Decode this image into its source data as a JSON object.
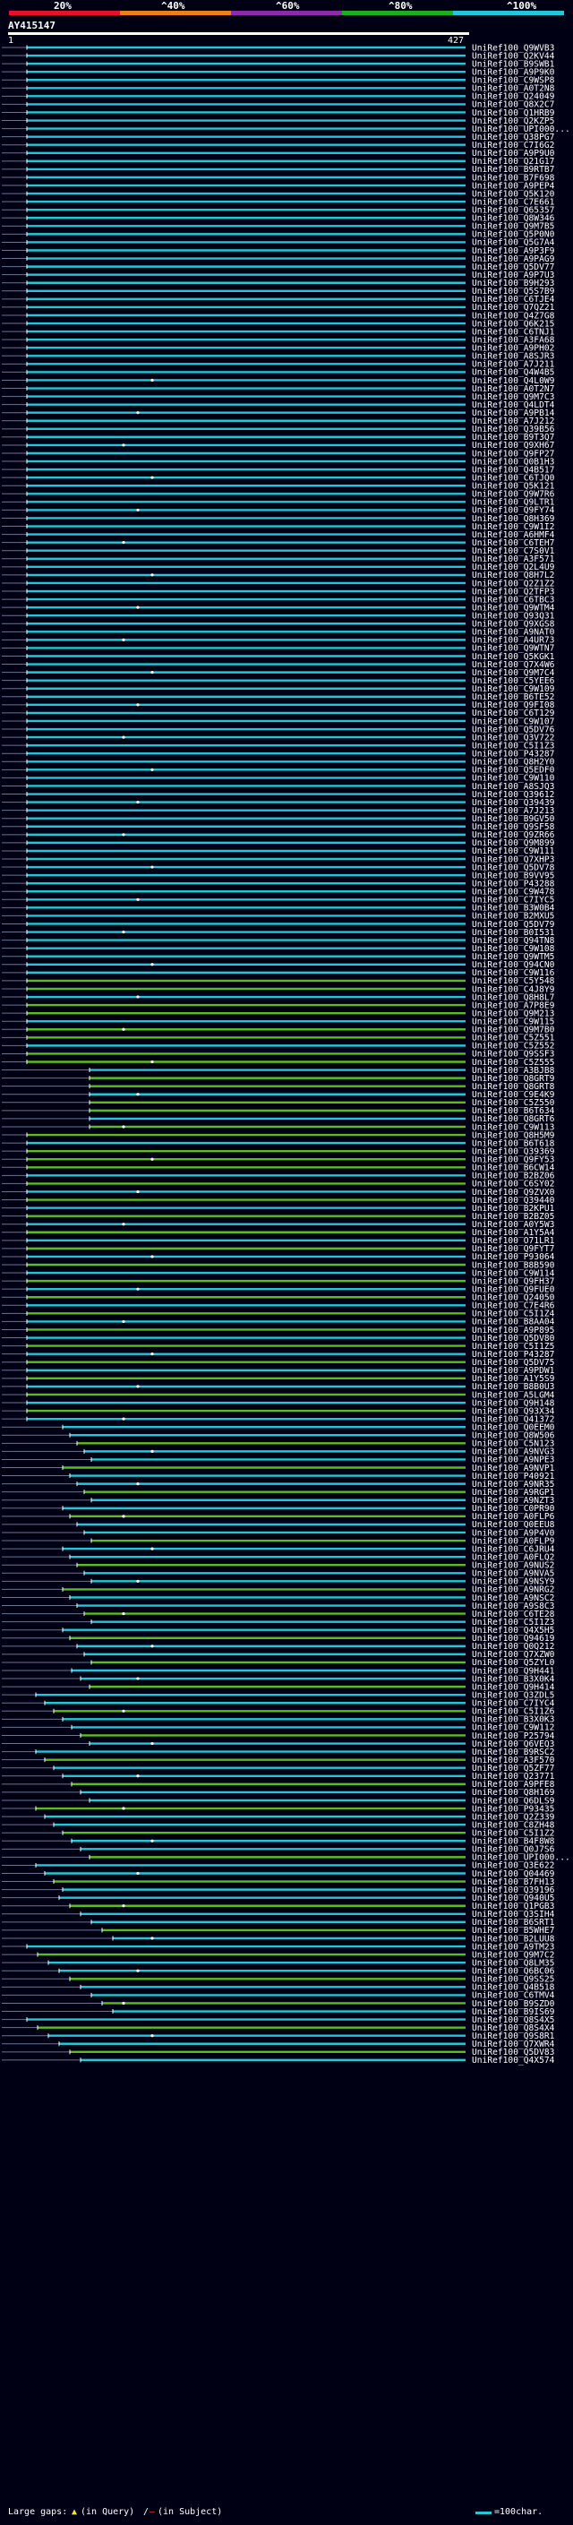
{
  "header": {
    "scale_labels": [
      "20%",
      "^40%",
      "^60%",
      "^80%",
      "^100%"
    ],
    "scale_colors": [
      "#e8102a",
      "#ef7f1a",
      "#8a2ca8",
      "#1cae1c",
      "#22c8d8"
    ],
    "query_name": "AY415147",
    "range_start": "1",
    "range_end": "427"
  },
  "colors": {
    "background": "#000014",
    "cyan": "#22c8d8",
    "green": "#5cbe1e",
    "dark_green": "#1d7a1d",
    "gap": "#6a7490"
  },
  "hits": [
    "UniRef100_Q9WVB3",
    "UniRef100_Q2KV44",
    "UniRef100_B9SWB1",
    "UniRef100_A9P9K0",
    "UniRef100_C9WSP8",
    "UniRef100_A0T2N8",
    "UniRef100_Q24049",
    "UniRef100_Q8X2C7",
    "UniRef100_Q1HRB9",
    "UniRef100_Q2KZP5",
    "UniRef100_UPI000...",
    "UniRef100_Q38PG7",
    "UniRef100_C7I6G2",
    "UniRef100_A9P9U0",
    "UniRef100_Q21G17",
    "UniRef100_B9RTB7",
    "UniRef100_B7F698",
    "UniRef100_A9PEP4",
    "UniRef100_Q5K120",
    "UniRef100_C7E661",
    "UniRef100_Q65357",
    "UniRef100_Q8W346",
    "UniRef100_Q9M7B5",
    "UniRef100_Q5P0N0",
    "UniRef100_Q5G7A4",
    "UniRef100_A9P3F9",
    "UniRef100_A9PAG9",
    "UniRef100_Q5DV77",
    "UniRef100_A9P7U3",
    "UniRef100_B9H293",
    "UniRef100_Q5S7B9",
    "UniRef100_C6TJE4",
    "UniRef100_Q7QZ21",
    "UniRef100_Q4Z7G8",
    "UniRef100_Q6K215",
    "UniRef100_C6TNJ1",
    "UniRef100_A3FA68",
    "UniRef100_A9PH02",
    "UniRef100_A8SJR3",
    "UniRef100_A7J211",
    "UniRef100_Q4W4B5",
    "UniRef100_Q4L0W9",
    "UniRef100_A0T2N7",
    "UniRef100_Q9M7C3",
    "UniRef100_Q4LDT4",
    "UniRef100_A9PB14",
    "UniRef100_A7J212",
    "UniRef100_Q39B56",
    "UniRef100_B9T3Q7",
    "UniRef100_Q9XH67",
    "UniRef100_Q9FP27",
    "UniRef100_Q0B1H3",
    "UniRef100_Q4B517",
    "UniRef100_C6TJQ0",
    "UniRef100_Q5K121",
    "UniRef100_Q9W7R6",
    "UniRef100_Q9LTR1",
    "UniRef100_Q9FY74",
    "UniRef100_Q8H369",
    "UniRef100_C9W1I2",
    "UniRef100_A6HMF4",
    "UniRef100_C6TEH7",
    "UniRef100_C7S0V1",
    "UniRef100_A3F571",
    "UniRef100_Q2L4U9",
    "UniRef100_Q8H7L2",
    "UniRef100_Q2Z1Z2",
    "UniRef100_Q2TFP3",
    "UniRef100_C6TBC3",
    "UniRef100_Q9WTM4",
    "UniRef100_Q93Q31",
    "UniRef100_Q9XGS8",
    "UniRef100_A9NAT0",
    "UniRef100_A4UR73",
    "UniRef100_Q9WTN7",
    "UniRef100_Q5KGK1",
    "UniRef100_Q7X4W6",
    "UniRef100_Q9M7C4",
    "UniRef100_C5YEE6",
    "UniRef100_C9W109",
    "UniRef100_B6TE52",
    "UniRef100_Q9FI08",
    "UniRef100_C6T129",
    "UniRef100_C9W107",
    "UniRef100_Q5DV76",
    "UniRef100_Q3V722",
    "UniRef100_C5I1Z3",
    "UniRef100_P43287",
    "UniRef100_Q8H2Y0",
    "UniRef100_Q5EDF0",
    "UniRef100_C9W110",
    "UniRef100_A8SJQ3",
    "UniRef100_Q39612",
    "UniRef100_Q39439",
    "UniRef100_A7J213",
    "UniRef100_B9GV50",
    "UniRef100_Q9SF58",
    "UniRef100_Q9ZR66",
    "UniRef100_Q9M899",
    "UniRef100_C9W111",
    "UniRef100_Q7XHP3",
    "UniRef100_Q5DV78",
    "UniRef100_B9VV95",
    "UniRef100_P43288",
    "UniRef100_C9W478",
    "UniRef100_C7IYC5",
    "UniRef100_B3W0B4",
    "UniRef100_B2MXU5",
    "UniRef100_Q5DV79",
    "UniRef100_B0I531",
    "UniRef100_Q94TN8",
    "UniRef100_C9W108",
    "UniRef100_Q9WTM5",
    "UniRef100_Q94CN0",
    "UniRef100_C9W116",
    "UniRef100_C5Y548",
    "UniRef100_C4J8Y9",
    "UniRef100_Q8H8L7",
    "UniRef100_A7P8E9",
    "UniRef100_Q9M213",
    "UniRef100_C9W115",
    "UniRef100_Q9M7B0",
    "UniRef100_C5Z551",
    "UniRef100_C5Z552",
    "UniRef100_Q9SSF3",
    "UniRef100_C5Z555",
    "UniRef100_A3BJB8",
    "UniRef100_Q8GRT9",
    "UniRef100_Q8GRT8",
    "UniRef100_C9E4K9",
    "UniRef100_C5Z550",
    "UniRef100_B6T634",
    "UniRef100_Q8GRT6",
    "UniRef100_C9W113",
    "UniRef100_Q8H5M9",
    "UniRef100_B6T618",
    "UniRef100_Q39369",
    "UniRef100_Q9FY53",
    "UniRef100_B6CW14",
    "UniRef100_B2BZ06",
    "UniRef100_C6SY02",
    "UniRef100_Q9ZVX0",
    "UniRef100_Q39440",
    "UniRef100_B2KPU1",
    "UniRef100_B2BZ05",
    "UniRef100_A0Y5W3",
    "UniRef100_A1Y5A4",
    "UniRef100_O71LR1",
    "UniRef100_Q9FYT7",
    "UniRef100_P93064",
    "UniRef100_B8B590",
    "UniRef100_C9W114",
    "UniRef100_Q9FH37",
    "UniRef100_Q9FUE0",
    "UniRef100_Q24050",
    "UniRef100_C7E4R6",
    "UniRef100_C5I1Z4",
    "UniRef100_B8AA04",
    "UniRef100_A9P895",
    "UniRef100_Q5DV80",
    "UniRef100_C5I1Z5",
    "UniRef100_P43287",
    "UniRef100_Q5DV75",
    "UniRef100_A9PDW1",
    "UniRef100_A1Y5S9",
    "UniRef100_B8B0U3",
    "UniRef100_A5LGM4",
    "UniRef100_Q9H148",
    "UniRef100_Q93X34",
    "UniRef100_Q41372",
    "UniRef100_Q0EEM0",
    "UniRef100_Q8W506",
    "UniRef100_C5N123",
    "UniRef100_A9NVG3",
    "UniRef100_A9NPE3",
    "UniRef100_A9NVP1",
    "UniRef100_P40921",
    "UniRef100_A9NR35",
    "UniRef100_A9RGP1",
    "UniRef100_A9NZT3",
    "UniRef100_C0PR90",
    "UniRef100_A0FLP6",
    "UniRef100_Q0EEU8",
    "UniRef100_A9P4V0",
    "UniRef100_A0FLP9",
    "UniRef100_C6JRU4",
    "UniRef100_A0FLQ2",
    "UniRef100_A9NUS2",
    "UniRef100_A9NVA5",
    "UniRef100_A9NSY9",
    "UniRef100_A9NRG2",
    "UniRef100_A9NSC2",
    "UniRef100_A9S8C3",
    "UniRef100_C6TE28",
    "UniRef100_C5I1Z3",
    "UniRef100_Q4X5H5",
    "UniRef100_Q94619",
    "UniRef100_Q0Q212",
    "UniRef100_Q7XZW0",
    "UniRef100_Q5ZYL0",
    "UniRef100_Q9H441",
    "UniRef100_B3X0K4",
    "UniRef100_Q9H414",
    "UniRef100_Q3ZDL5",
    "UniRef100_C7IYC4",
    "UniRef100_C5I1Z6",
    "UniRef100_B3X0K3",
    "UniRef100_C9W112",
    "UniRef100_P25794",
    "UniRef100_Q6VEQ3",
    "UniRef100_B9RSC2",
    "UniRef100_A3F570",
    "UniRef100_Q5ZF77",
    "UniRef100_Q23771",
    "UniRef100_A9PFE8",
    "UniRef100_Q8H169",
    "UniRef100_Q6DLS9",
    "UniRef100_P93435",
    "UniRef100_Q2Z339",
    "UniRef100_C8ZH48",
    "UniRef100_C5I1Z2",
    "UniRef100_B4F8W8",
    "UniRef100_Q0J7S6",
    "UniRef100_UPI000...",
    "UniRef100_Q3E622",
    "UniRef100_Q04469",
    "UniRef100_B7FH13",
    "UniRef100_Q39196",
    "UniRef100_Q940U5",
    "UniRef100_Q1PGB3",
    "UniRef100_Q3SIH4",
    "UniRef100_B6SRT1",
    "UniRef100_B5WHE7",
    "UniRef100_B2LUU8",
    "UniRef100_A9TM23",
    "UniRef100_Q9M7C2",
    "UniRef100_Q8LM35",
    "UniRef100_Q6BC06",
    "UniRef100_Q9SS25",
    "UniRef100_Q4B518",
    "UniRef100_C6TMV4",
    "UniRef100_B9SZD0",
    "UniRef100_B9IS69",
    "UniRef100_Q8S4X5",
    "UniRef100_Q8S4X4",
    "UniRef100_Q9S8R1",
    "UniRef100_Q7XWR4",
    "UniRef100_Q5DV83",
    "UniRef100_Q4X574"
  ],
  "legend": {
    "gaps_label": "Large gaps:",
    "query_gap": "(in Query)",
    "subject_gap": "(in Subject)",
    "scale_note": "=100char."
  }
}
